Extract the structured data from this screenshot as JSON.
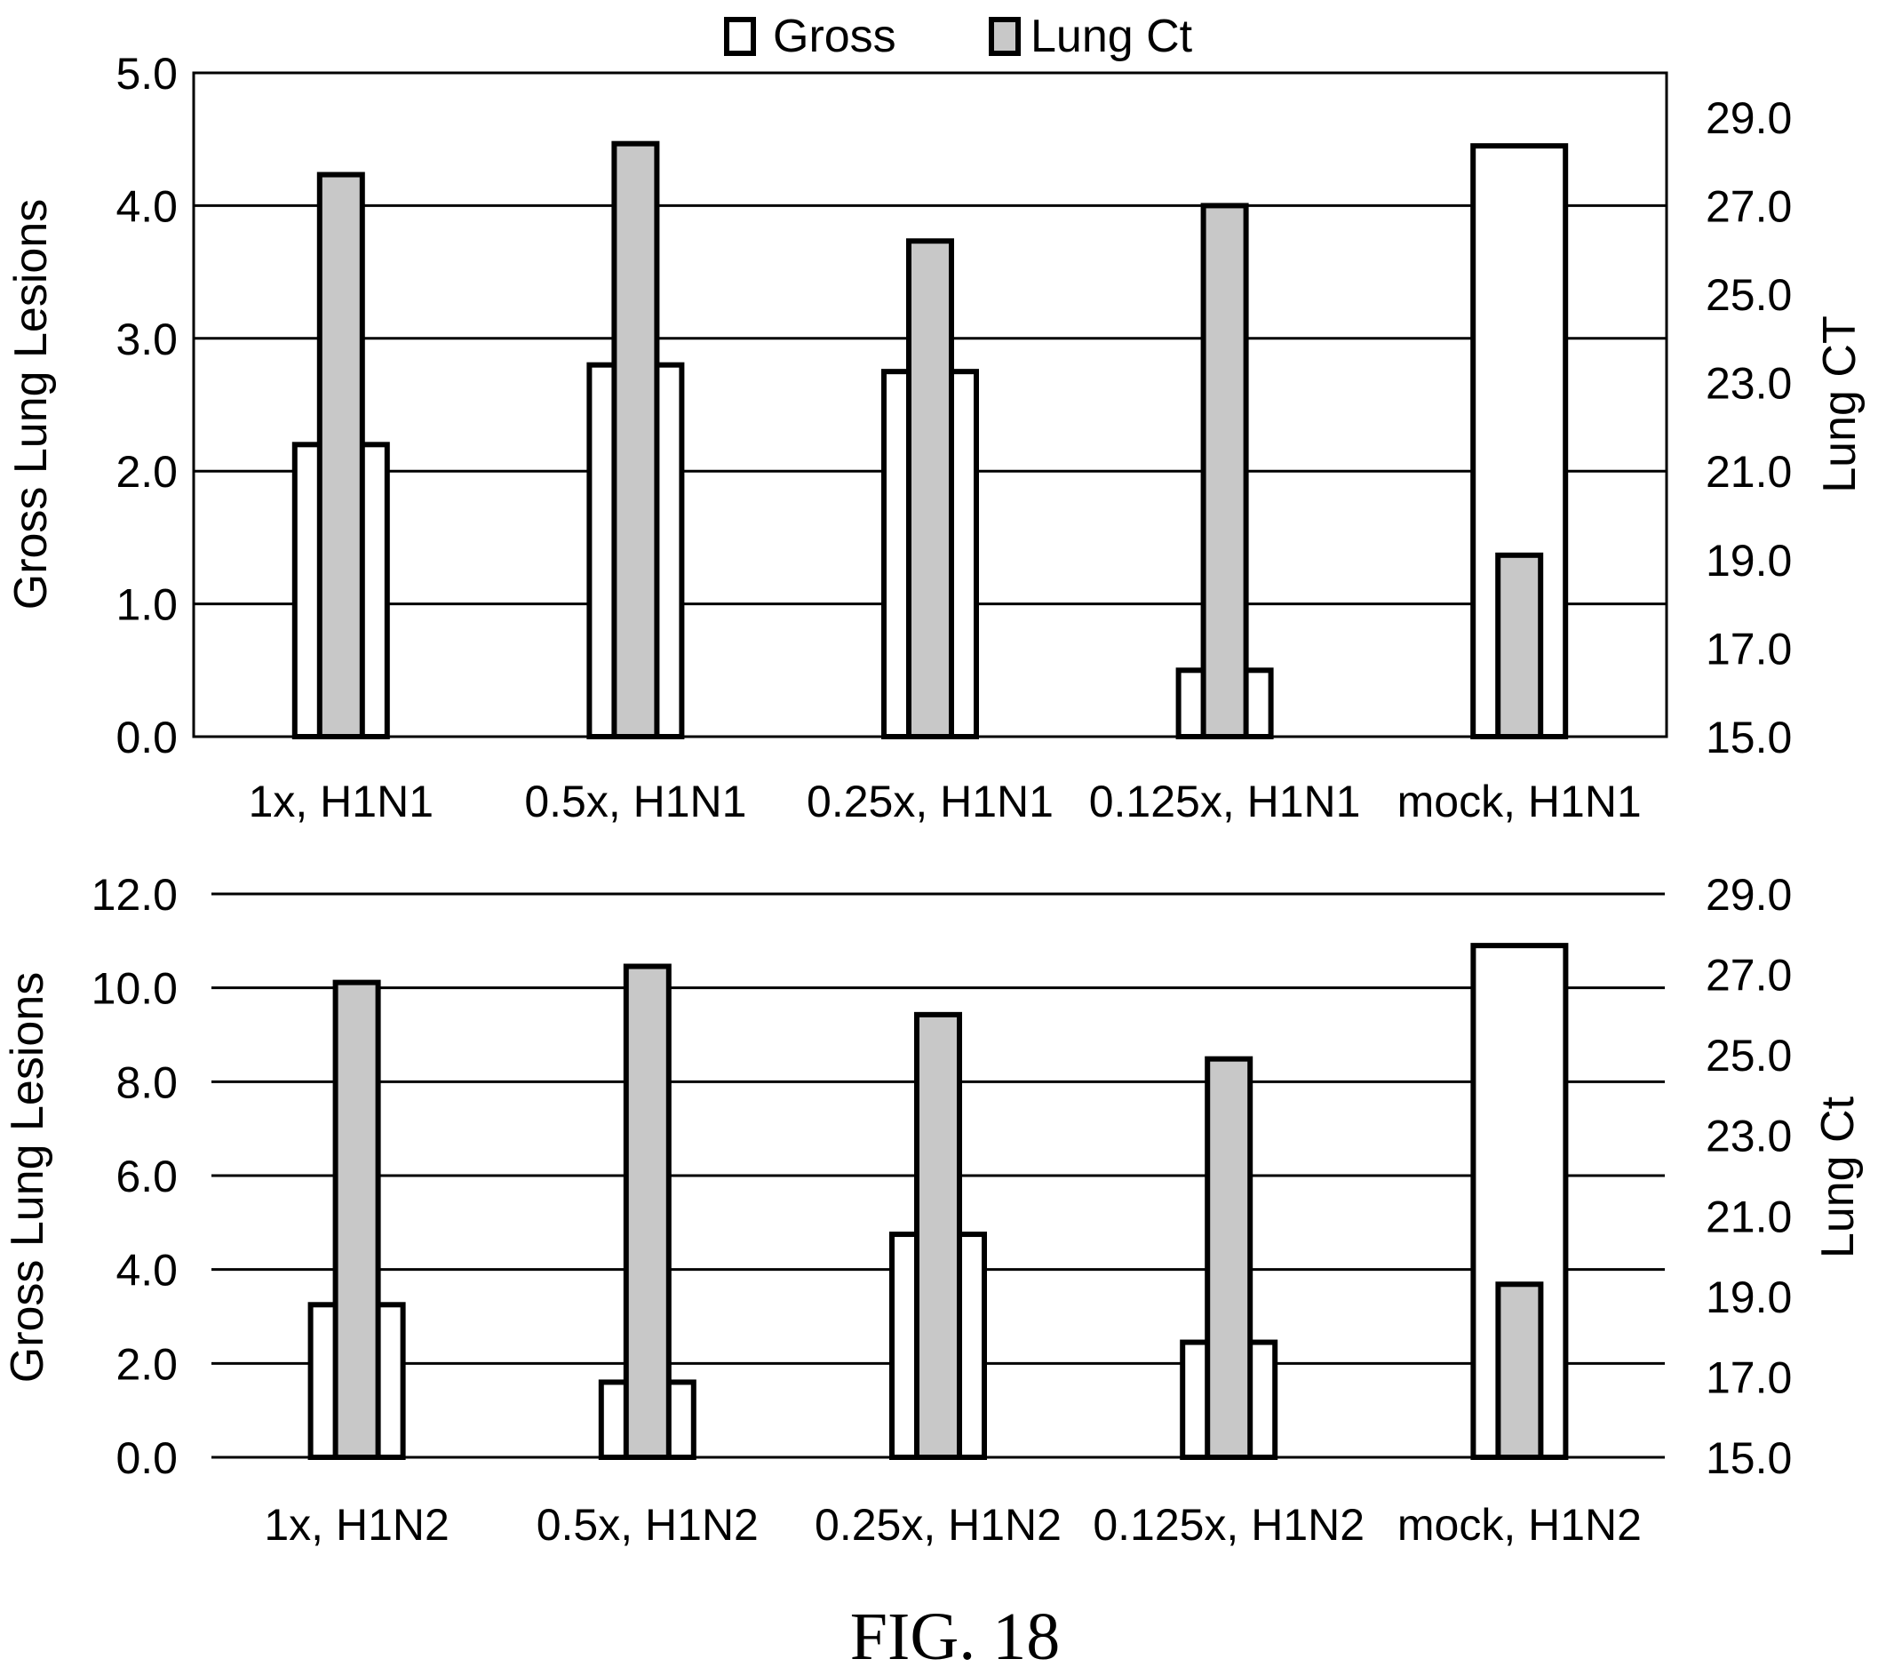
{
  "figure_caption": "FIG. 18",
  "colors": {
    "gross": "#ffffff",
    "lung_ct": "#c8c8c8",
    "stroke": "#000000",
    "grid": "#000000"
  },
  "chart_data": [
    {
      "type": "bar",
      "title": "",
      "categories": [
        "1x, H1N1",
        "0.5x, H1N1",
        "0.25x, H1N1",
        "0.125x, H1N1",
        "mock, H1N1"
      ],
      "series": [
        {
          "name": "Gross",
          "axis": "left",
          "values": [
            2.2,
            2.8,
            2.75,
            0.5,
            4.45
          ]
        },
        {
          "name": "Lung Ct",
          "axis": "right",
          "values": [
            27.7,
            28.4,
            26.2,
            27.0,
            19.1
          ]
        }
      ],
      "legend": {
        "position": "top-center",
        "items": [
          "Gross",
          "Lung Ct"
        ]
      },
      "ylabel": "Gross Lung Lesions",
      "ylim": [
        0,
        5
      ],
      "yticks": [
        "0.0",
        "1.0",
        "2.0",
        "3.0",
        "4.0",
        "5.0"
      ],
      "ylabel_right": "Lung CT",
      "ylim_right": [
        15,
        30
      ],
      "yticks_right": [
        "15.0",
        "17.0",
        "19.0",
        "21.0",
        "23.0",
        "25.0",
        "27.0",
        "29.0"
      ],
      "grid": true,
      "frame": true
    },
    {
      "type": "bar",
      "title": "",
      "categories": [
        "1x, H1N2",
        "0.5x, H1N2",
        "0.25x, H1N2",
        "0.125x, H1N2",
        "mock, H1N2"
      ],
      "series": [
        {
          "name": "Gross",
          "axis": "left",
          "values": [
            3.25,
            1.6,
            4.75,
            2.45,
            10.9
          ]
        },
        {
          "name": "Lung Ct",
          "axis": "right",
          "values": [
            26.8,
            27.2,
            26.0,
            24.9,
            19.3
          ]
        }
      ],
      "ylabel": "Gross Lung Lesions",
      "ylim": [
        0,
        12
      ],
      "yticks": [
        "0.0",
        "2.0",
        "4.0",
        "6.0",
        "8.0",
        "10.0",
        "12.0"
      ],
      "ylabel_right": "Lung Ct",
      "ylim_right": [
        15,
        29
      ],
      "yticks_right": [
        "15.0",
        "17.0",
        "19.0",
        "21.0",
        "23.0",
        "25.0",
        "27.0",
        "29.0"
      ],
      "grid": true,
      "frame": false
    }
  ]
}
